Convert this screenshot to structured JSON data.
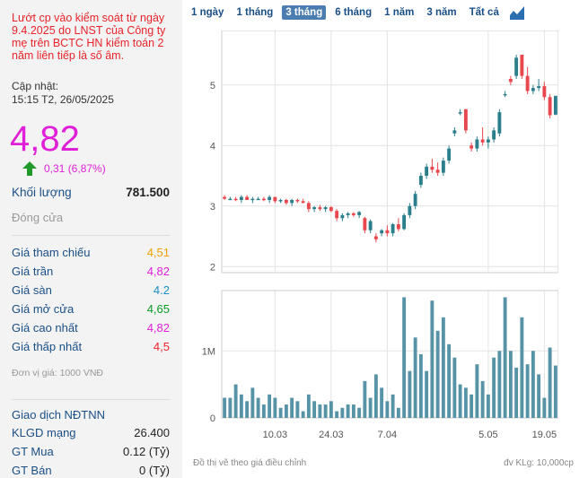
{
  "warning": "Lướt cp vào kiểm soát từ ngày 9.4.2025 do LNST của Công ty mẹ trên BCTC HN kiểm toán 2 năm liên tiếp là số âm.",
  "update_label": "Cập nhật:",
  "update_time": "15:15 T2, 26/05/2025",
  "price": "4,82",
  "change": "0,31 (6,87%)",
  "volume": {
    "label": "Khối lượng",
    "value": "781.500"
  },
  "status": "Đóng cửa",
  "stats": [
    {
      "label": "Giá tham chiếu",
      "value": "4,51",
      "color": "#f0a000"
    },
    {
      "label": "Giá trần",
      "value": "4,82",
      "color": "#e020d8"
    },
    {
      "label": "Giá sàn",
      "value": "4.2",
      "color": "#1a8fc8"
    },
    {
      "label": "Giá mở cửa",
      "value": "4,65",
      "color": "#0a9a28"
    },
    {
      "label": "Giá cao nhất",
      "value": "4,82",
      "color": "#e020d8"
    },
    {
      "label": "Giá thấp nhất",
      "value": "4,5",
      "color": "#e8232a"
    }
  ],
  "unit": "Đơn vị giá: 1000 VNĐ",
  "foreign": {
    "title": "Giao dịch NĐTNN",
    "rows": [
      {
        "label": "KLGD mạng",
        "value": "26.400"
      },
      {
        "label": "GT Mua",
        "value": "0.12 (Tỷ)"
      },
      {
        "label": "GT Bán",
        "value": "0 (Tỷ)"
      }
    ]
  },
  "tabs": [
    {
      "label": "1 ngày",
      "active": false
    },
    {
      "label": "1 tháng",
      "active": false
    },
    {
      "label": "3 tháng",
      "active": true
    },
    {
      "label": "6 tháng",
      "active": false
    },
    {
      "label": "1 năm",
      "active": false
    },
    {
      "label": "3 năm",
      "active": false
    },
    {
      "label": "Tất cả",
      "active": false
    }
  ],
  "chart_data": {
    "type": "candlestick",
    "x_tick_labels": [
      "10.03",
      "24.03",
      "7.04",
      "5.05",
      "19.05"
    ],
    "x_tick_index": [
      9,
      19,
      29,
      47,
      57
    ],
    "price_axis": {
      "ticks": [
        2,
        3,
        4,
        5
      ],
      "range": [
        1.9,
        5.9
      ]
    },
    "volume_axis": {
      "ticks": [
        "0",
        "1M"
      ],
      "tick_values": [
        0,
        1000000
      ],
      "range": [
        0,
        1900000
      ]
    },
    "up_color": "#2b7f8c",
    "down_color": "#e8474d",
    "volume_color": "#5793a6",
    "candles": [
      [
        3.15,
        3.18,
        3.1,
        3.12
      ],
      [
        3.12,
        3.15,
        3.1,
        3.12
      ],
      [
        3.12,
        3.15,
        3.08,
        3.1
      ],
      [
        3.1,
        3.18,
        3.05,
        3.15
      ],
      [
        3.15,
        3.18,
        3.1,
        3.1
      ],
      [
        3.1,
        3.15,
        3.05,
        3.12
      ],
      [
        3.12,
        3.15,
        3.1,
        3.12
      ],
      [
        3.12,
        3.15,
        3.08,
        3.1
      ],
      [
        3.1,
        3.18,
        3.05,
        3.15
      ],
      [
        3.15,
        3.15,
        3.05,
        3.08
      ],
      [
        3.08,
        3.12,
        3.05,
        3.1
      ],
      [
        3.1,
        3.12,
        3.02,
        3.05
      ],
      [
        3.05,
        3.12,
        3.0,
        3.1
      ],
      [
        3.1,
        3.12,
        3.05,
        3.08
      ],
      [
        3.08,
        3.12,
        3.05,
        3.05
      ],
      [
        3.05,
        3.08,
        2.9,
        2.95
      ],
      [
        2.95,
        3.0,
        2.9,
        2.98
      ],
      [
        2.98,
        3.02,
        2.92,
        2.95
      ],
      [
        2.95,
        3.0,
        2.9,
        2.98
      ],
      [
        2.98,
        3.0,
        2.9,
        2.92
      ],
      [
        2.92,
        2.95,
        2.75,
        2.8
      ],
      [
        2.8,
        2.88,
        2.75,
        2.85
      ],
      [
        2.85,
        2.9,
        2.8,
        2.88
      ],
      [
        2.88,
        2.9,
        2.82,
        2.85
      ],
      [
        2.85,
        2.92,
        2.8,
        2.9
      ],
      [
        2.8,
        2.82,
        2.55,
        2.6
      ],
      [
        2.6,
        2.78,
        2.55,
        2.75
      ],
      [
        2.5,
        2.55,
        2.4,
        2.45
      ],
      [
        2.55,
        2.62,
        2.5,
        2.6
      ],
      [
        2.6,
        2.68,
        2.5,
        2.55
      ],
      [
        2.55,
        2.72,
        2.5,
        2.7
      ],
      [
        2.7,
        2.8,
        2.58,
        2.62
      ],
      [
        2.62,
        2.88,
        2.6,
        2.85
      ],
      [
        2.85,
        3.05,
        2.8,
        3.0
      ],
      [
        3.0,
        3.25,
        2.95,
        3.2
      ],
      [
        3.35,
        3.55,
        3.3,
        3.5
      ],
      [
        3.5,
        3.7,
        3.45,
        3.65
      ],
      [
        3.65,
        3.78,
        3.55,
        3.6
      ],
      [
        3.6,
        3.72,
        3.5,
        3.55
      ],
      [
        3.55,
        3.8,
        3.5,
        3.75
      ],
      [
        3.75,
        4.0,
        3.7,
        3.95
      ],
      [
        4.2,
        4.3,
        4.15,
        4.25
      ],
      [
        4.55,
        4.6,
        4.5,
        4.55
      ],
      [
        4.6,
        4.6,
        4.2,
        4.25
      ],
      [
        4.0,
        4.05,
        3.9,
        3.95
      ],
      [
        3.95,
        4.15,
        3.9,
        4.1
      ],
      [
        4.1,
        4.3,
        4.0,
        4.05
      ],
      [
        4.05,
        4.15,
        3.95,
        4.1
      ],
      [
        4.1,
        4.3,
        4.05,
        4.25
      ],
      [
        4.2,
        4.6,
        4.15,
        4.55
      ],
      [
        4.85,
        4.9,
        4.8,
        4.85
      ],
      [
        5.1,
        5.15,
        5.0,
        5.05
      ],
      [
        5.15,
        5.5,
        5.1,
        5.45
      ],
      [
        5.5,
        5.5,
        5.1,
        5.15
      ],
      [
        5.15,
        5.3,
        4.85,
        4.9
      ],
      [
        4.9,
        5.0,
        4.85,
        4.95
      ],
      [
        4.95,
        5.1,
        4.9,
        4.98
      ],
      [
        4.98,
        5.05,
        4.75,
        4.8
      ],
      [
        4.8,
        4.85,
        4.45,
        4.5
      ],
      [
        4.51,
        4.82,
        4.5,
        4.82
      ]
    ],
    "volumes": [
      300000,
      300000,
      500000,
      350000,
      250000,
      450000,
      300000,
      200000,
      350000,
      300000,
      150000,
      200000,
      300000,
      250000,
      100000,
      350000,
      250000,
      200000,
      200000,
      250000,
      100000,
      150000,
      200000,
      200000,
      150000,
      550000,
      300000,
      650000,
      450000,
      250000,
      350000,
      150000,
      1800000,
      700000,
      1200000,
      950000,
      700000,
      1750000,
      1300000,
      1500000,
      1100000,
      900000,
      500000,
      450000,
      350000,
      800000,
      550000,
      350000,
      900000,
      1000000,
      1800000,
      1000000,
      750000,
      1500000,
      800000,
      1000000,
      650000,
      300000,
      1050000,
      781500
    ],
    "footnote_left": "Đồ thị vẽ theo giá điều chỉnh",
    "footnote_right": "đv KLg: 10,000cp"
  }
}
